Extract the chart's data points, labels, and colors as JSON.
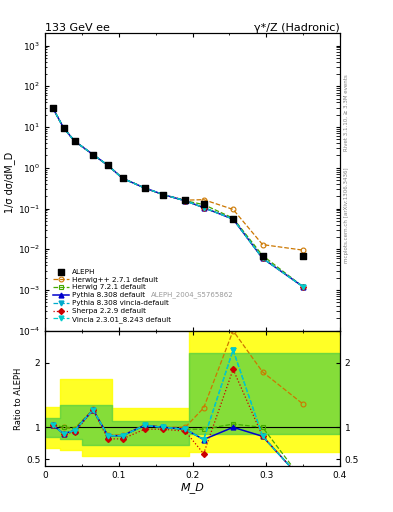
{
  "title_left": "133 GeV ee",
  "title_right": "γ*/Z (Hadronic)",
  "ylabel_main": "1/σ dσ/dM_D",
  "ylabel_ratio": "Ratio to ALEPH",
  "xlabel": "M_D",
  "watermark": "ALEPH_2004_S5765862",
  "right_label_top": "Rivet 3.1.10, ≥ 3.3M events",
  "right_label_bot": "mcplots.cern.ch [arXiv:1306.3436]",
  "x_data": [
    0.01,
    0.025,
    0.04,
    0.065,
    0.085,
    0.105,
    0.135,
    0.16,
    0.19,
    0.215,
    0.255,
    0.295,
    0.35
  ],
  "aleph_y": [
    30,
    9.5,
    4.5,
    2.1,
    1.15,
    0.55,
    0.32,
    0.22,
    0.16,
    0.13,
    0.055,
    0.007,
    0.007
  ],
  "herwig_pp_y": [
    30,
    9.5,
    4.5,
    2.1,
    1.15,
    0.55,
    0.32,
    0.22,
    0.16,
    0.165,
    0.095,
    0.013,
    0.0095
  ],
  "herwig72_y": [
    30,
    9.5,
    4.5,
    2.1,
    1.15,
    0.55,
    0.32,
    0.22,
    0.155,
    0.125,
    0.058,
    0.007,
    0.0012
  ],
  "pythia_y": [
    30,
    9.5,
    4.5,
    2.1,
    1.15,
    0.55,
    0.32,
    0.22,
    0.155,
    0.105,
    0.055,
    0.006,
    0.0012
  ],
  "vincia_y": [
    30,
    9.5,
    4.5,
    2.1,
    1.15,
    0.55,
    0.32,
    0.22,
    0.155,
    0.105,
    0.055,
    0.006,
    0.0012
  ],
  "sherpa_y": [
    30,
    9.5,
    4.5,
    2.1,
    1.15,
    0.55,
    0.32,
    0.22,
    0.155,
    0.105,
    0.055,
    0.006,
    0.0012
  ],
  "vinciaMC_y": [
    30,
    9.5,
    4.5,
    2.1,
    1.15,
    0.55,
    0.32,
    0.22,
    0.155,
    0.105,
    0.055,
    0.006,
    0.0012
  ],
  "ratio_x": [
    0.01,
    0.025,
    0.04,
    0.065,
    0.085,
    0.105,
    0.135,
    0.16,
    0.19,
    0.215,
    0.255,
    0.295,
    0.35
  ],
  "ratio_herwig_pp": [
    1.04,
    1.0,
    0.98,
    1.28,
    0.88,
    0.88,
    1.04,
    1.0,
    1.0,
    1.3,
    2.5,
    1.86,
    1.36
  ],
  "ratio_herwig72": [
    1.04,
    1.0,
    0.98,
    1.27,
    0.87,
    0.87,
    1.03,
    1.0,
    0.97,
    0.97,
    1.05,
    1.0,
    0.17
  ],
  "ratio_pythia": [
    1.04,
    0.9,
    0.95,
    1.27,
    0.87,
    0.87,
    1.03,
    1.0,
    0.97,
    0.81,
    1.0,
    0.86,
    0.17
  ],
  "ratio_vincia": [
    1.04,
    0.9,
    0.95,
    1.27,
    0.87,
    0.87,
    1.03,
    1.0,
    0.97,
    0.81,
    2.2,
    0.86,
    0.17
  ],
  "ratio_sherpa": [
    1.04,
    0.9,
    0.92,
    1.27,
    0.82,
    0.82,
    0.97,
    0.97,
    0.94,
    0.59,
    1.9,
    0.86,
    0.17
  ],
  "ratio_vinciaMC": [
    1.04,
    0.9,
    0.95,
    1.27,
    0.87,
    0.87,
    1.03,
    1.0,
    0.97,
    0.81,
    2.2,
    0.86,
    0.17
  ],
  "band_x_steps": [
    0.0,
    0.02,
    0.02,
    0.05,
    0.05,
    0.09,
    0.09,
    0.14,
    0.14,
    0.195,
    0.195,
    0.24,
    0.24,
    0.32,
    0.32,
    0.4
  ],
  "band_green_lo_s": [
    0.85,
    0.85,
    0.82,
    0.82,
    0.72,
    0.72,
    0.72,
    0.72,
    0.72,
    0.72,
    0.9,
    0.9,
    0.9,
    0.9,
    0.9,
    0.9
  ],
  "band_green_hi_s": [
    1.15,
    1.15,
    1.35,
    1.35,
    1.35,
    1.35,
    1.1,
    1.1,
    1.1,
    1.1,
    2.15,
    2.15,
    2.15,
    2.15,
    2.15,
    2.15
  ],
  "band_yellow_lo_s": [
    0.68,
    0.68,
    0.65,
    0.65,
    0.55,
    0.55,
    0.55,
    0.55,
    0.55,
    0.55,
    0.62,
    0.62,
    0.62,
    0.62,
    0.62,
    0.62
  ],
  "band_yellow_hi_s": [
    1.32,
    1.32,
    1.75,
    1.75,
    1.75,
    1.75,
    1.3,
    1.3,
    1.3,
    1.3,
    2.75,
    2.75,
    2.75,
    2.75,
    2.75,
    2.75
  ],
  "colors": {
    "aleph": "#000000",
    "herwig_pp": "#cc7700",
    "herwig72": "#44aa00",
    "pythia": "#0000cc",
    "vincia": "#00aacc",
    "sherpa": "#cc0000",
    "vinciaMC": "#00cccc"
  },
  "xlim": [
    0.0,
    0.4
  ],
  "ylim_main": [
    0.0001,
    2000
  ],
  "ylim_ratio": [
    0.4,
    2.5
  ],
  "ratio_yticks": [
    0.5,
    1.0,
    2.0
  ],
  "ratio_yticklabels": [
    "0.5",
    "1",
    "2"
  ]
}
